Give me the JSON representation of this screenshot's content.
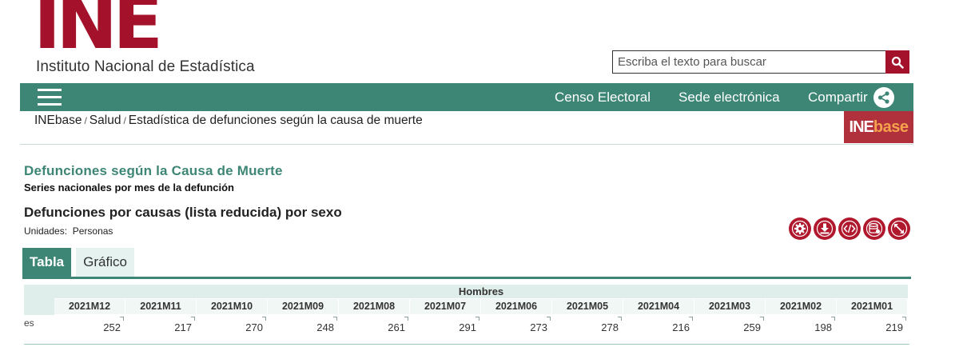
{
  "header": {
    "logo_text": "INE",
    "institution": "Instituto Nacional de Estadística"
  },
  "search": {
    "placeholder": "Escriba el texto para buscar"
  },
  "nav": {
    "links": [
      "Censo Electoral",
      "Sede electrónica",
      "Compartir"
    ]
  },
  "breadcrumb": {
    "items": [
      "INEbase",
      "Salud",
      "Estadística de defunciones según la causa de muerte"
    ],
    "separator": "/"
  },
  "badge": {
    "part1": "INE",
    "part2": "base"
  },
  "page": {
    "title": "Defunciones según la Causa de Muerte",
    "subtitle": "Series nacionales por mes de la defunción",
    "table_title": "Defunciones por causas (lista reducida) por sexo",
    "units_label": "Unidades:",
    "units_value": "Personas"
  },
  "actions": [
    "gear-icon",
    "download-icon",
    "code-icon",
    "database-icon",
    "expand-icon"
  ],
  "tabs": {
    "active": "Tabla",
    "inactive": "Gráfico"
  },
  "table": {
    "group_header": "Hombres",
    "row_label": "es",
    "columns": [
      "2021M12",
      "2021M11",
      "2021M10",
      "2021M09",
      "2021M08",
      "2021M07",
      "2021M06",
      "2021M05",
      "2021M04",
      "2021M03",
      "2021M02",
      "2021M01"
    ],
    "values": [
      "252",
      "217",
      "270",
      "248",
      "261",
      "291",
      "273",
      "278",
      "216",
      "259",
      "198",
      "219"
    ]
  },
  "colors": {
    "brand_red": "#a3122a",
    "teal": "#3d8676"
  }
}
